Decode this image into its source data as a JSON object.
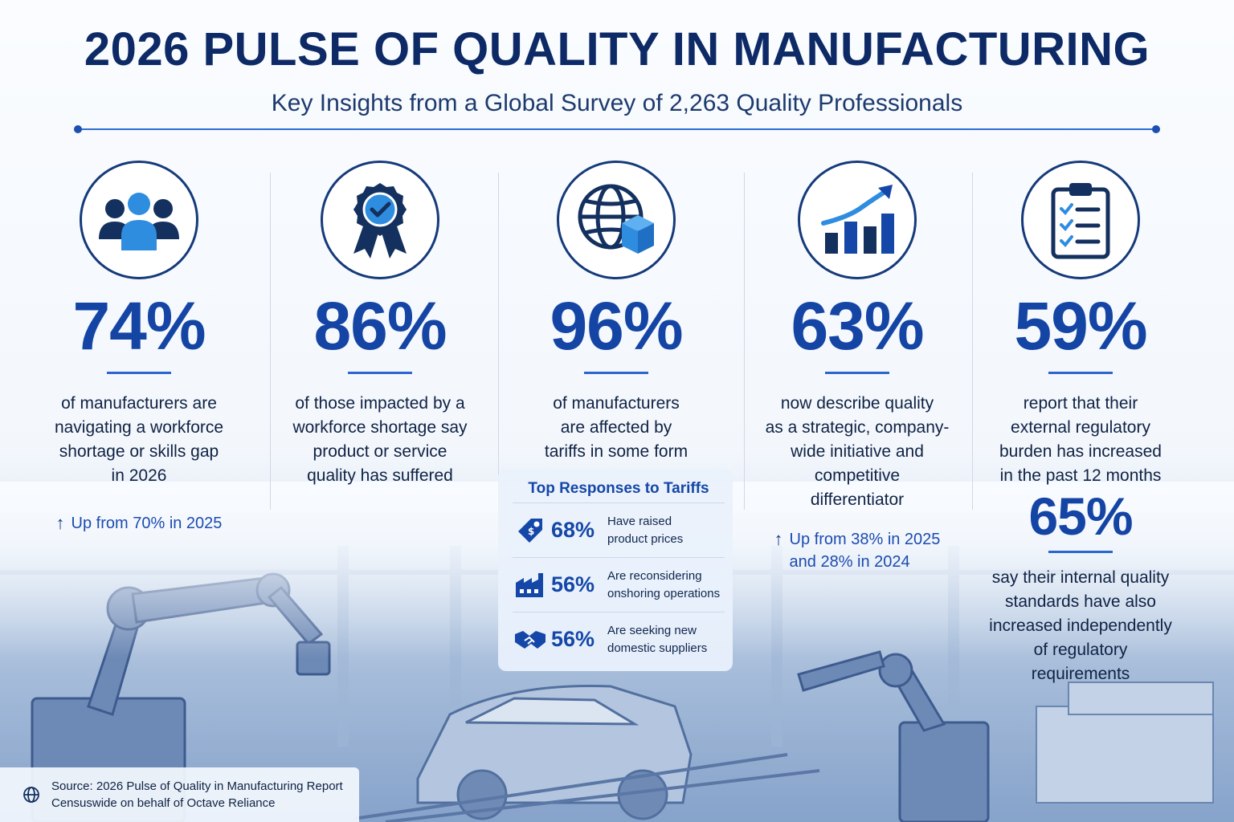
{
  "header": {
    "title": "2026 PULSE OF QUALITY IN MANUFACTURING",
    "subtitle": "Key Insights from a Global Survey of 2,263 Quality Professionals"
  },
  "stats": [
    {
      "icon": "people-icon",
      "value": "74%",
      "lines": [
        "of manufacturers are",
        "navigating a workforce",
        "shortage or skills gap",
        "in 2026"
      ],
      "note": [
        "Up from 70% in 2025"
      ]
    },
    {
      "icon": "award-ribbon-icon",
      "value": "86%",
      "lines": [
        "of those impacted by a",
        "workforce shortage say",
        "product or service",
        "quality has suffered"
      ]
    },
    {
      "icon": "globe-box-icon",
      "value": "96%",
      "lines": [
        "of manufacturers",
        "are affected by",
        "tariffs in some form"
      ]
    },
    {
      "icon": "growth-chart-icon",
      "value": "63%",
      "lines": [
        "now describe quality",
        "as a strategic, company-",
        "wide initiative and",
        "competitive",
        "differentiator"
      ],
      "note": [
        "Up from 38% in 2025",
        "and 28% in 2024"
      ]
    },
    {
      "icon": "clipboard-checklist-icon",
      "value": "59%",
      "lines": [
        "report that their",
        "external regulatory",
        "burden has increased",
        "in the past 12 months"
      ]
    }
  ],
  "tariff_responses": {
    "title": "Top Responses to Tariffs",
    "items": [
      {
        "icon": "price-tag-icon",
        "value": "68%",
        "lines": [
          "Have raised",
          "product prices"
        ]
      },
      {
        "icon": "factory-icon",
        "value": "56%",
        "lines": [
          "Are reconsidering",
          "onshoring operations"
        ]
      },
      {
        "icon": "handshake-icon",
        "value": "56%",
        "lines": [
          "Are seeking new",
          "domestic suppliers"
        ]
      }
    ]
  },
  "internal_standards": {
    "value": "65%",
    "lines": [
      "say their internal quality",
      "standards have also",
      "increased independently",
      "of regulatory",
      "requirements"
    ]
  },
  "source": {
    "line1": "Source: 2026 Pulse of Quality in Manufacturing Report",
    "line2": "Censuswide on behalf of Octave Reliance"
  },
  "colors": {
    "primary": "#1445a5",
    "navy": "#0d2a66",
    "accent_light": "#2f8de0"
  }
}
